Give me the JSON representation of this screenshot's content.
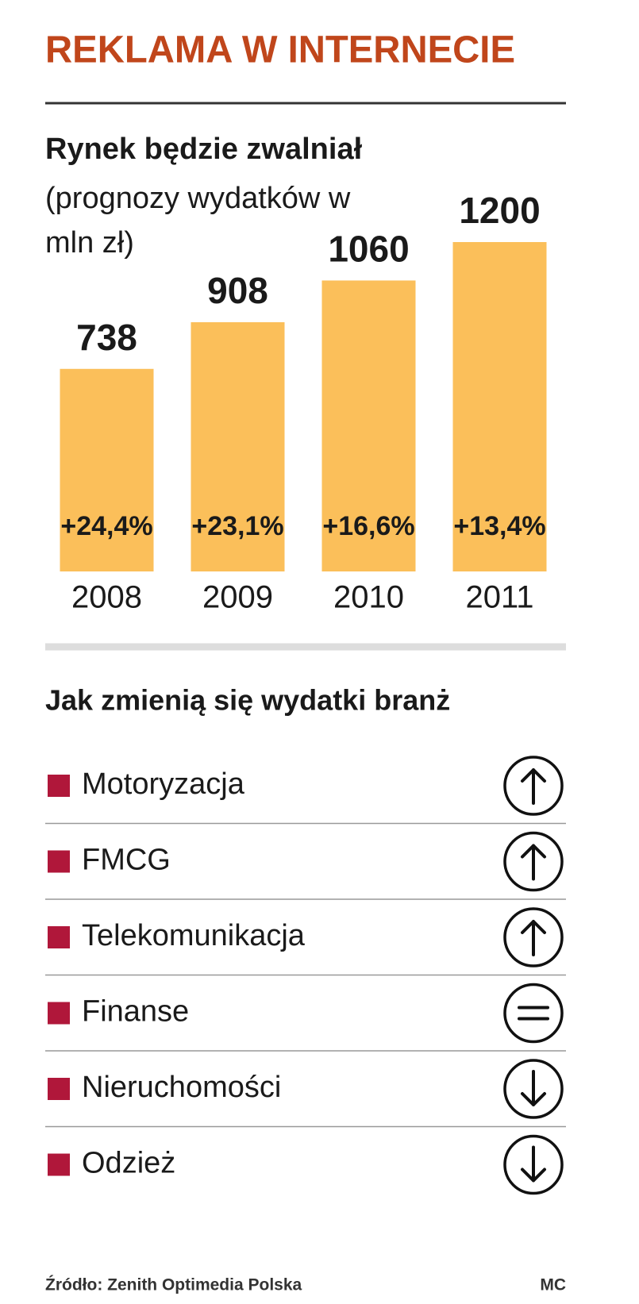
{
  "chart_data": {
    "type": "bar",
    "header": "REKLAMA W INTERNECIE",
    "title": "Rynek będzie zwalniał",
    "subtitle": "(prognozy wydatków w mln zł)",
    "categories": [
      "2008",
      "2009",
      "2010",
      "2011"
    ],
    "values": [
      738,
      908,
      1060,
      1200
    ],
    "color": "#fbbf5a",
    "growth_labels": [
      "+24,4%",
      "+23,1%",
      "+16,6%",
      "+13,4%"
    ]
  },
  "list": {
    "title": "Jak zmienią się wydatki branż",
    "marker_color": "#b0173a",
    "items": [
      {
        "label": "Motoryzacja",
        "trend": "up"
      },
      {
        "label": "FMCG",
        "trend": "up"
      },
      {
        "label": "Telekomunikacja",
        "trend": "up"
      },
      {
        "label": "Finanse",
        "trend": "equal"
      },
      {
        "label": "Nieruchomości",
        "trend": "down"
      },
      {
        "label": "Odzież",
        "trend": "down"
      }
    ]
  },
  "footer": {
    "source": "Źródło: Zenith Optimedia Polska",
    "author": "MC"
  }
}
